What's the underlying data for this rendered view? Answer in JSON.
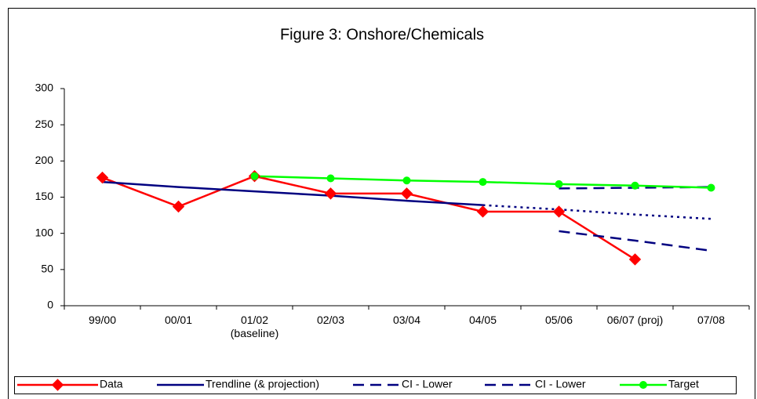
{
  "chart_data": {
    "type": "line",
    "title": "Figure 3: Onshore/Chemicals",
    "categories": [
      "99/00",
      "00/01",
      "01/02\n(baseline)",
      "02/03",
      "03/04",
      "04/05",
      "05/06",
      "06/07 (proj)",
      "07/08"
    ],
    "ylim": [
      0,
      300
    ],
    "yticks": [
      0,
      50,
      100,
      150,
      200,
      250,
      300
    ],
    "grid": false,
    "legend": "bottom",
    "series": [
      {
        "name": "Data",
        "color": "#ff0000",
        "marker": "diamond",
        "dash": "solid",
        "values": [
          177,
          137,
          179,
          155,
          155,
          130,
          130,
          64,
          null
        ]
      },
      {
        "name": "Trendline (& projection)",
        "color": "#000080",
        "marker": "none",
        "dash": "solid",
        "projection_from": 5,
        "values": [
          171,
          164,
          158,
          152,
          145,
          139,
          133,
          126,
          120
        ]
      },
      {
        "name": "CI - Lower",
        "color": "#000080",
        "marker": "none",
        "dash": "dash",
        "values": [
          null,
          null,
          null,
          null,
          null,
          null,
          162,
          163,
          164
        ]
      },
      {
        "name": "CI - Lower",
        "color": "#000080",
        "marker": "none",
        "dash": "dash",
        "values": [
          null,
          null,
          null,
          null,
          null,
          null,
          103,
          90,
          76
        ]
      },
      {
        "name": "Target",
        "color": "#00ff00",
        "marker": "circle",
        "dash": "solid",
        "values": [
          null,
          null,
          179,
          176,
          173,
          171,
          168,
          166,
          163
        ]
      }
    ]
  }
}
